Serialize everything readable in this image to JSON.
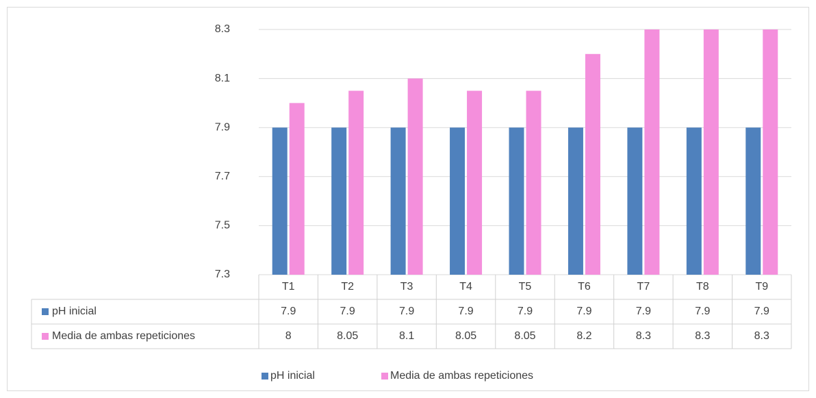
{
  "chart_data": {
    "type": "bar",
    "categories": [
      "T1",
      "T2",
      "T3",
      "T4",
      "T5",
      "T6",
      "T7",
      "T8",
      "T9"
    ],
    "series": [
      {
        "name": "pH inicial",
        "color": "#4f81bd",
        "values": [
          7.9,
          7.9,
          7.9,
          7.9,
          7.9,
          7.9,
          7.9,
          7.9,
          7.9
        ]
      },
      {
        "name": "Media de ambas repeticiones",
        "color": "#f48fdc",
        "values": [
          8,
          8.05,
          8.1,
          8.05,
          8.05,
          8.2,
          8.3,
          8.3,
          8.3
        ]
      }
    ],
    "ylim": [
      7.3,
      8.3
    ],
    "yticks": [
      7.3,
      7.5,
      7.7,
      7.9,
      8.1,
      8.3
    ],
    "grid": true,
    "legend": "bottom"
  }
}
